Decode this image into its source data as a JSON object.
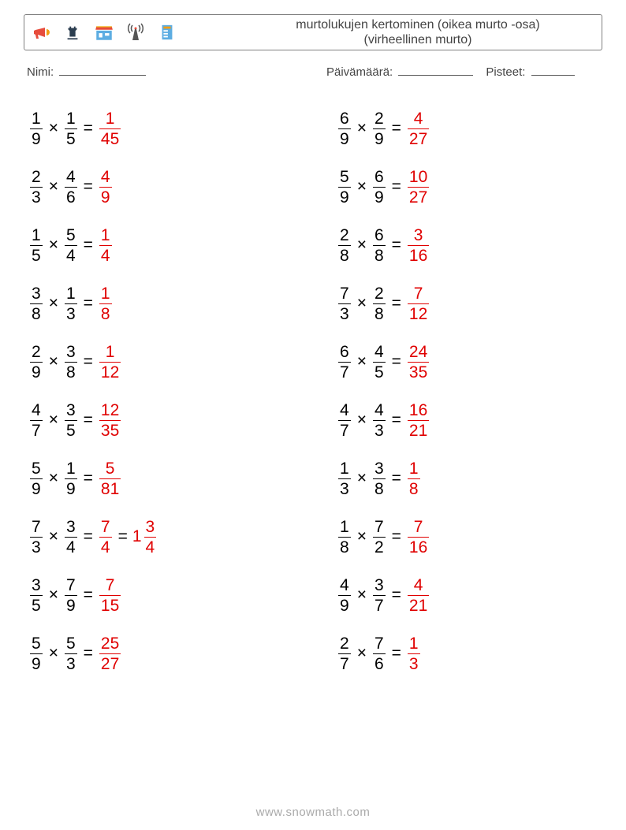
{
  "header": {
    "title_line1": "murtolukujen kertominen (oikea murto -osa)",
    "title_line2": "(virheellinen murto)",
    "icons": [
      {
        "name": "megaphone-icon",
        "fill": "#e74c3c"
      },
      {
        "name": "chess-rook-icon",
        "fill": "#2c3e50"
      },
      {
        "name": "storefront-icon",
        "fill": "#3498db"
      },
      {
        "name": "antenna-icon",
        "fill": "#555555"
      },
      {
        "name": "server-icon",
        "fill": "#3498db"
      }
    ]
  },
  "labels": {
    "name": "Nimi:",
    "date": "Päivämäärä:",
    "score": "Pisteet:"
  },
  "style": {
    "answer_color": "#e00000",
    "text_color": "#000000",
    "mult_sign": "×",
    "eq_sign": "="
  },
  "columns": [
    [
      {
        "a": [
          1,
          9
        ],
        "b": [
          1,
          5
        ],
        "ans": [
          [
            1,
            45
          ]
        ]
      },
      {
        "a": [
          2,
          3
        ],
        "b": [
          4,
          6
        ],
        "ans": [
          [
            4,
            9
          ]
        ]
      },
      {
        "a": [
          1,
          5
        ],
        "b": [
          5,
          4
        ],
        "ans": [
          [
            1,
            4
          ]
        ]
      },
      {
        "a": [
          3,
          8
        ],
        "b": [
          1,
          3
        ],
        "ans": [
          [
            1,
            8
          ]
        ]
      },
      {
        "a": [
          2,
          9
        ],
        "b": [
          3,
          8
        ],
        "ans": [
          [
            1,
            12
          ]
        ]
      },
      {
        "a": [
          4,
          7
        ],
        "b": [
          3,
          5
        ],
        "ans": [
          [
            12,
            35
          ]
        ]
      },
      {
        "a": [
          5,
          9
        ],
        "b": [
          1,
          9
        ],
        "ans": [
          [
            5,
            81
          ]
        ]
      },
      {
        "a": [
          7,
          3
        ],
        "b": [
          3,
          4
        ],
        "ans": [
          [
            7,
            4
          ],
          {
            "mixed": [
              1,
              3,
              4
            ]
          }
        ]
      },
      {
        "a": [
          3,
          5
        ],
        "b": [
          7,
          9
        ],
        "ans": [
          [
            7,
            15
          ]
        ]
      },
      {
        "a": [
          5,
          9
        ],
        "b": [
          5,
          3
        ],
        "ans": [
          [
            25,
            27
          ]
        ]
      }
    ],
    [
      {
        "a": [
          6,
          9
        ],
        "b": [
          2,
          9
        ],
        "ans": [
          [
            4,
            27
          ]
        ]
      },
      {
        "a": [
          5,
          9
        ],
        "b": [
          6,
          9
        ],
        "ans": [
          [
            10,
            27
          ]
        ]
      },
      {
        "a": [
          2,
          8
        ],
        "b": [
          6,
          8
        ],
        "ans": [
          [
            3,
            16
          ]
        ]
      },
      {
        "a": [
          7,
          3
        ],
        "b": [
          2,
          8
        ],
        "ans": [
          [
            7,
            12
          ]
        ]
      },
      {
        "a": [
          6,
          7
        ],
        "b": [
          4,
          5
        ],
        "ans": [
          [
            24,
            35
          ]
        ]
      },
      {
        "a": [
          4,
          7
        ],
        "b": [
          4,
          3
        ],
        "ans": [
          [
            16,
            21
          ]
        ]
      },
      {
        "a": [
          1,
          3
        ],
        "b": [
          3,
          8
        ],
        "ans": [
          [
            1,
            8
          ]
        ]
      },
      {
        "a": [
          1,
          8
        ],
        "b": [
          7,
          2
        ],
        "ans": [
          [
            7,
            16
          ]
        ]
      },
      {
        "a": [
          4,
          9
        ],
        "b": [
          3,
          7
        ],
        "ans": [
          [
            4,
            21
          ]
        ]
      },
      {
        "a": [
          2,
          7
        ],
        "b": [
          7,
          6
        ],
        "ans": [
          [
            1,
            3
          ]
        ]
      }
    ]
  ],
  "footer": "www.snowmath.com"
}
